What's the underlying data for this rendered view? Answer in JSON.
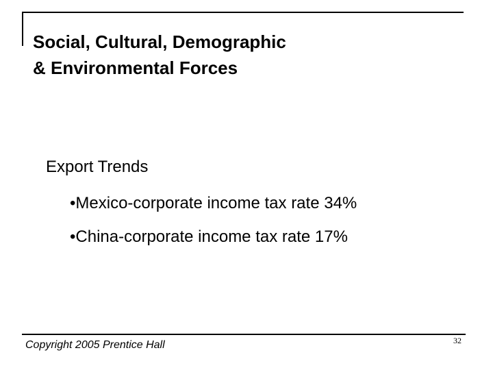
{
  "slide": {
    "title_lines": [
      "Social, Cultural, Demographic",
      "& Environmental Forces"
    ],
    "subheading": "Export Trends",
    "bullets": [
      "•Mexico-corporate income tax rate 34%",
      "•China-corporate income tax rate 17%"
    ]
  },
  "footer": {
    "copyright": "Copyright 2005 Prentice Hall",
    "page_number": "32"
  }
}
